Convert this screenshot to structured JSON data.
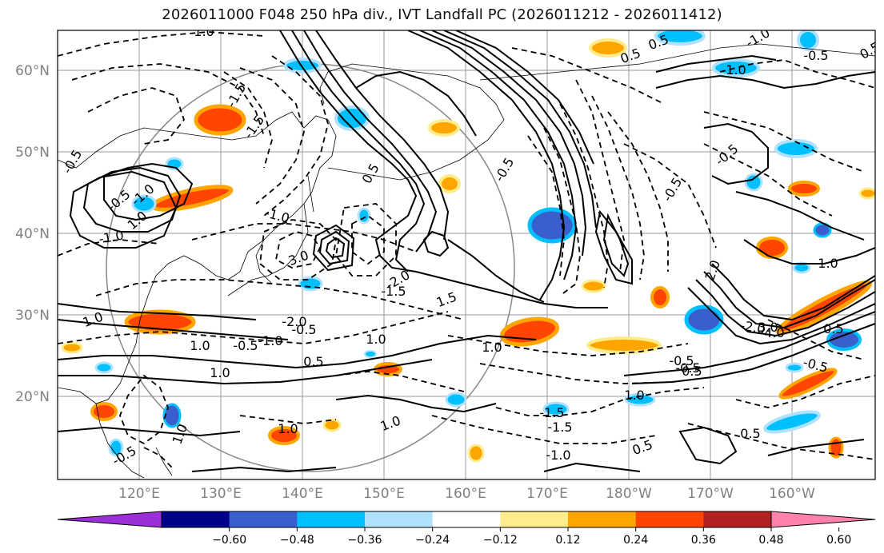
{
  "title": "2026011000 F048 250 hPa div., IVT Landfall PC (2026011212 - 2026011412)",
  "map": {
    "lat_labels": [
      "60°N",
      "50°N",
      "40°N",
      "30°N",
      "20°N"
    ],
    "lon_labels": [
      "120°E",
      "130°E",
      "140°E",
      "150°E",
      "160°E",
      "170°E",
      "180°W",
      "170°W",
      "160°W"
    ],
    "contour_labels": [
      "1.0",
      "-1.5",
      "-1.5",
      "-0.5",
      "-0.5",
      "-1.0",
      "-1.0",
      "0.5",
      "-0.5",
      "1.0",
      "-0.5",
      "-2.0",
      "1.0",
      "-1.0",
      "-1.5",
      "3.0",
      "-1.0",
      "1.0",
      "1.5",
      "-2.0",
      "1.0",
      "-0.5",
      "1.0",
      "-0.5",
      "-2.0",
      "2.0",
      "1.0",
      "-0.5",
      "0.5",
      "-0.5",
      "1.0",
      "-1.0",
      "0.5",
      "-1.5",
      "0.5",
      "0.5",
      "1.0",
      "-0.5",
      "0.5",
      "1.0",
      "1.0",
      "0.5",
      "0.5",
      "-0.5",
      "4.0",
      "3.0",
      "-1.0",
      "1.0",
      "1.0",
      "0.5",
      "-1.5",
      "-0.5",
      "-0.5"
    ]
  },
  "colorbar": {
    "colors": [
      "#9b30d9",
      "#00008b",
      "#3a5fcd",
      "#00bfff",
      "#b0e2ff",
      "#ffffff",
      "#ffec8b",
      "#ffa500",
      "#ff4500",
      "#b22222",
      "#ff82ab"
    ],
    "tick_labels": [
      "−0.60",
      "−0.48",
      "−0.36",
      "−0.24",
      "−0.12",
      "0.12",
      "0.24",
      "0.36",
      "0.48",
      "0.60"
    ]
  }
}
